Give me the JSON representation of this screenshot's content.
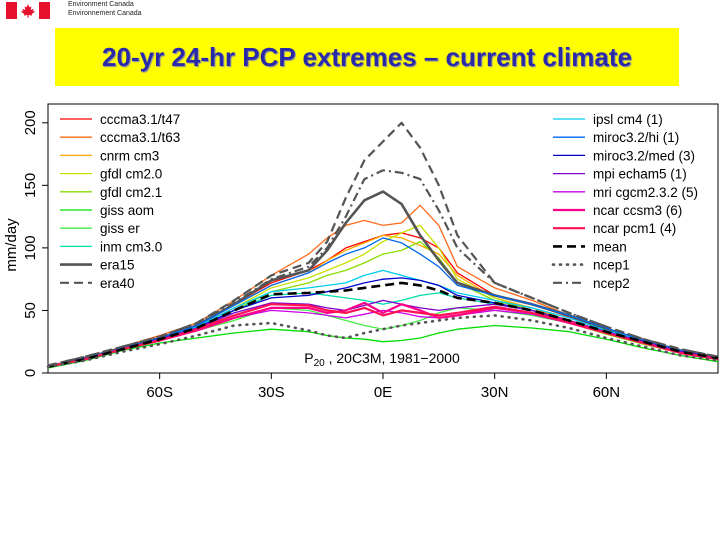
{
  "header": {
    "agency_line1": "Environment Canada",
    "agency_line2": "Environnement Canada"
  },
  "title": "20-yr 24-hr PCP extremes – current climate",
  "chart_data": {
    "type": "line",
    "ylabel": "mm/day",
    "xlabel": "",
    "xlim": [
      -90,
      90
    ],
    "ylim": [
      0,
      215
    ],
    "x_ticks": [
      -60,
      -30,
      0,
      30,
      60
    ],
    "x_tick_labels": [
      "60S",
      "30S",
      "0E",
      "30N",
      "60N"
    ],
    "y_ticks": [
      0,
      50,
      100,
      150,
      200
    ],
    "y_tick_labels": [
      "0",
      "50",
      "100",
      "150",
      "200"
    ],
    "annotation": {
      "main": "P",
      "sub": "20",
      "rest": " , 20C3M, 1981−2000"
    },
    "x": [
      -90,
      -80,
      -70,
      -60,
      -50,
      -40,
      -30,
      -20,
      -15,
      -10,
      -5,
      0,
      5,
      10,
      15,
      20,
      30,
      40,
      50,
      60,
      70,
      80,
      90
    ],
    "series": [
      {
        "name": "cccma3.1/t47",
        "color": "#ff0000",
        "style": "solid",
        "values": [
          5,
          12,
          20,
          28,
          38,
          55,
          72,
          82,
          90,
          100,
          105,
          110,
          112,
          108,
          100,
          80,
          62,
          55,
          45,
          35,
          25,
          18,
          12
        ]
      },
      {
        "name": "cccma3.1/t63",
        "color": "#ff6a1a",
        "style": "solid",
        "values": [
          5,
          12,
          21,
          30,
          40,
          58,
          78,
          95,
          108,
          118,
          122,
          118,
          120,
          134,
          118,
          85,
          68,
          58,
          46,
          36,
          26,
          18,
          12
        ]
      },
      {
        "name": "cnrm cm3",
        "color": "#ffaa00",
        "style": "solid",
        "values": [
          5,
          11,
          20,
          28,
          38,
          54,
          70,
          80,
          90,
          98,
          104,
          110,
          108,
          102,
          95,
          78,
          60,
          52,
          42,
          32,
          24,
          16,
          11
        ]
      },
      {
        "name": "gfdl cm2.0",
        "color": "#c8e000",
        "style": "solid",
        "values": [
          5,
          11,
          19,
          27,
          37,
          52,
          68,
          76,
          82,
          88,
          95,
          105,
          112,
          118,
          100,
          75,
          60,
          50,
          42,
          32,
          24,
          16,
          11
        ]
      },
      {
        "name": "gfdl cm2.1",
        "color": "#88dd00",
        "style": "solid",
        "values": [
          5,
          11,
          19,
          27,
          36,
          50,
          65,
          72,
          78,
          82,
          88,
          95,
          98,
          105,
          92,
          72,
          58,
          50,
          40,
          31,
          23,
          16,
          11
        ]
      },
      {
        "name": "giss aom",
        "color": "#00dd00",
        "style": "solid",
        "values": [
          4,
          10,
          18,
          24,
          28,
          32,
          35,
          33,
          30,
          28,
          27,
          25,
          26,
          28,
          32,
          35,
          38,
          36,
          33,
          27,
          20,
          14,
          9
        ]
      },
      {
        "name": "giss er",
        "color": "#44ee44",
        "style": "solid",
        "values": [
          5,
          11,
          19,
          26,
          34,
          42,
          52,
          50,
          46,
          42,
          38,
          35,
          38,
          42,
          48,
          52,
          50,
          46,
          40,
          32,
          24,
          16,
          11
        ]
      },
      {
        "name": "inm cm3.0",
        "color": "#00ddaa",
        "style": "solid",
        "values": [
          5,
          11,
          19,
          27,
          36,
          50,
          62,
          64,
          62,
          60,
          58,
          55,
          58,
          62,
          64,
          60,
          55,
          50,
          42,
          33,
          25,
          17,
          12
        ]
      },
      {
        "name": "era15",
        "color": "#555555",
        "style": "solid",
        "width": 2.6,
        "values": [
          5,
          12,
          20,
          28,
          38,
          55,
          74,
          82,
          98,
          120,
          138,
          145,
          135,
          110,
          90,
          72,
          62,
          55,
          46,
          35,
          26,
          18,
          12
        ]
      },
      {
        "name": "era40",
        "color": "#555555",
        "style": "dash",
        "width": 2.2,
        "values": [
          6,
          13,
          21,
          29,
          40,
          58,
          78,
          88,
          105,
          140,
          170,
          185,
          200,
          180,
          150,
          110,
          72,
          60,
          48,
          37,
          27,
          19,
          13
        ]
      },
      {
        "name": "ipsl cm4 (1)",
        "color": "#00ccee",
        "style": "solid",
        "values": [
          5,
          11,
          19,
          27,
          37,
          52,
          65,
          68,
          70,
          72,
          78,
          82,
          78,
          74,
          70,
          64,
          58,
          52,
          44,
          34,
          26,
          18,
          12
        ]
      },
      {
        "name": "miroc3.2/hi (1)",
        "color": "#0066ee",
        "style": "solid",
        "values": [
          5,
          12,
          20,
          28,
          38,
          54,
          70,
          80,
          88,
          95,
          100,
          108,
          104,
          95,
          85,
          70,
          62,
          55,
          46,
          36,
          26,
          18,
          12
        ]
      },
      {
        "name": "miroc3.2/med (3)",
        "color": "#0000cc",
        "style": "solid",
        "values": [
          5,
          11,
          19,
          27,
          36,
          50,
          60,
          62,
          65,
          68,
          72,
          75,
          76,
          74,
          70,
          62,
          56,
          50,
          42,
          33,
          25,
          17,
          12
        ]
      },
      {
        "name": "mpi echam5 (1)",
        "color": "#7a00cc",
        "style": "solid",
        "values": [
          5,
          11,
          19,
          27,
          36,
          48,
          56,
          55,
          52,
          50,
          54,
          58,
          55,
          52,
          50,
          52,
          55,
          50,
          42,
          33,
          25,
          17,
          12
        ]
      },
      {
        "name": "mri cgcm2.3.2 (5)",
        "color": "#cc00ee",
        "style": "solid",
        "values": [
          5,
          11,
          19,
          26,
          34,
          44,
          50,
          48,
          46,
          44,
          47,
          50,
          48,
          45,
          44,
          46,
          50,
          47,
          40,
          32,
          24,
          16,
          11
        ]
      },
      {
        "name": "ncar ccsm3 (6)",
        "color": "#ff0088",
        "style": "solid",
        "width": 2.2,
        "values": [
          5,
          11,
          19,
          26,
          34,
          44,
          52,
          52,
          48,
          50,
          56,
          48,
          55,
          50,
          44,
          46,
          52,
          48,
          40,
          32,
          24,
          16,
          11
        ]
      },
      {
        "name": "ncar pcm1 (4)",
        "color": "#ff1155",
        "style": "solid",
        "width": 2.2,
        "values": [
          5,
          11,
          19,
          26,
          35,
          46,
          55,
          54,
          50,
          48,
          52,
          46,
          50,
          48,
          46,
          48,
          53,
          48,
          41,
          32,
          24,
          16,
          11
        ]
      },
      {
        "name": "mean",
        "color": "#000000",
        "style": "dash",
        "width": 2.6,
        "values": [
          5,
          11,
          19,
          27,
          36,
          50,
          63,
          64,
          65,
          66,
          68,
          70,
          72,
          70,
          66,
          60,
          56,
          50,
          42,
          33,
          25,
          17,
          12
        ]
      },
      {
        "name": "ncep1",
        "color": "#555555",
        "style": "dot",
        "width": 2.6,
        "values": [
          5,
          10,
          17,
          23,
          30,
          38,
          40,
          34,
          30,
          28,
          32,
          35,
          38,
          40,
          42,
          44,
          46,
          42,
          36,
          28,
          21,
          14,
          10
        ]
      },
      {
        "name": "ncep2",
        "color": "#555555",
        "style": "dashdot",
        "width": 2.2,
        "values": [
          6,
          13,
          21,
          29,
          40,
          56,
          75,
          85,
          100,
          125,
          155,
          162,
          160,
          155,
          130,
          100,
          72,
          60,
          48,
          37,
          27,
          19,
          13
        ]
      }
    ]
  }
}
